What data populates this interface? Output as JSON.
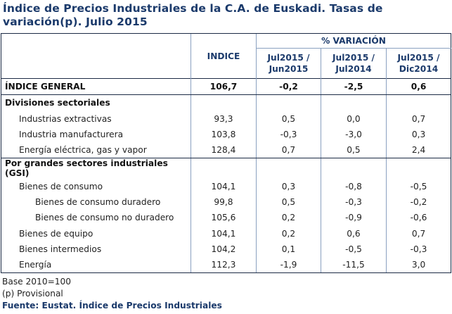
{
  "title": "Índice de Precios Industriales de la C.A. de Euskadi. Tasas de variación(p). Julio 2015",
  "header": {
    "indice": "INDICE",
    "variacion": "% VARIACIÓN",
    "cols": [
      {
        "l1": "Jul2015 /",
        "l2": "Jun2015"
      },
      {
        "l1": "Jul2015 /",
        "l2": "Jul2014"
      },
      {
        "l1": "Jul2015 /",
        "l2": "Dic2014"
      }
    ]
  },
  "general": {
    "label": "ÍNDICE GENERAL",
    "indice": "106,7",
    "v1": "-0,2",
    "v2": "-2,5",
    "v3": "0,6"
  },
  "sections": [
    {
      "title": "Divisiones sectoriales",
      "rows": [
        {
          "label": "Industrias extractivas",
          "indice": "93,3",
          "v1": "0,5",
          "v2": "0,0",
          "v3": "0,7"
        },
        {
          "label": "Industria manufacturera",
          "indice": "103,8",
          "v1": "-0,3",
          "v2": "-3,0",
          "v3": "0,3"
        },
        {
          "label": "Energía eléctrica, gas y vapor",
          "indice": "128,4",
          "v1": "0,7",
          "v2": "0,5",
          "v3": "2,4"
        }
      ]
    },
    {
      "title": "Por grandes sectores industriales (GSI)",
      "rows": [
        {
          "label": "Bienes de consumo",
          "indice": "104,1",
          "v1": "0,3",
          "v2": "-0,8",
          "v3": "-0,5"
        },
        {
          "label": "Bienes de consumo duradero",
          "indice": "99,8",
          "v1": "0,5",
          "v2": "-0,3",
          "v3": "-0,2"
        },
        {
          "label": "Bienes de consumo no duradero",
          "indice": "105,6",
          "v1": "0,2",
          "v2": "-0,9",
          "v3": "-0,6"
        },
        {
          "label": "Bienes de equipo",
          "indice": "104,1",
          "v1": "0,2",
          "v2": "0,6",
          "v3": "0,7"
        },
        {
          "label": "Bienes intermedios",
          "indice": "104,2",
          "v1": "0,1",
          "v2": "-0,5",
          "v3": "-0,3"
        },
        {
          "label": "Energía",
          "indice": "112,3",
          "v1": "-1,9",
          "v2": "-11,5",
          "v3": "3,0"
        }
      ]
    }
  ],
  "footer": {
    "base": "Base 2010=100",
    "provisional": "(p) Provisional",
    "source": "Fuente: Eustat. Índice de Precios Industriales"
  }
}
